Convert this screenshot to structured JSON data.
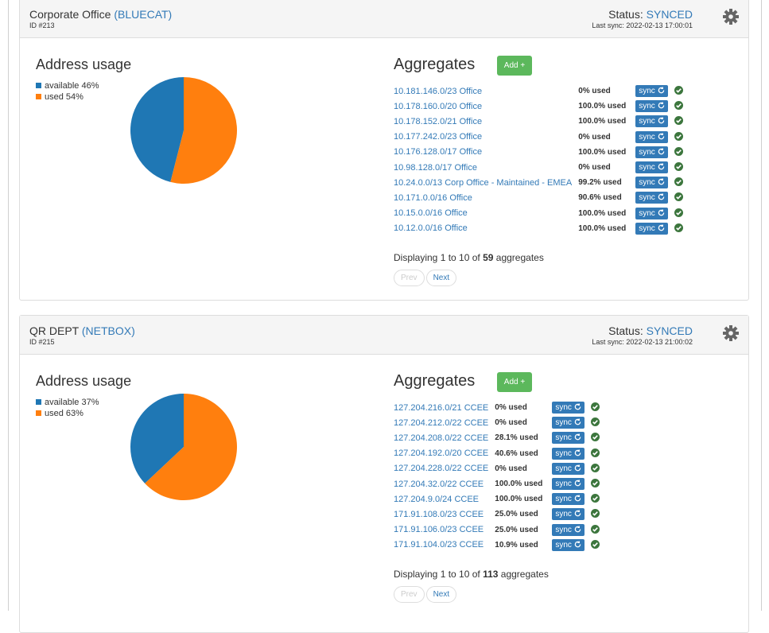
{
  "panels": [
    {
      "name": "Corporate Office",
      "source": "(BLUECAT)",
      "id": "ID #213",
      "status_label": "Status:",
      "status": "SYNCED",
      "last_sync": "Last sync: 2022-02-13 17:00:01",
      "chart_data": {
        "type": "pie",
        "title": "Address usage",
        "categories": [
          "available",
          "used"
        ],
        "values": [
          46,
          54
        ],
        "value_labels": [
          "46%",
          "54%"
        ],
        "colors": [
          "#1f77b4",
          "#ff7f0e"
        ]
      },
      "aggregates": {
        "title": "Aggregates",
        "add": "Add +",
        "sync": "sync",
        "rows": [
          {
            "name": "10.181.146.0/23 Office",
            "used": "0% used"
          },
          {
            "name": "10.178.160.0/20 Office",
            "used": "100.0% used"
          },
          {
            "name": "10.178.152.0/21 Office",
            "used": "100.0% used"
          },
          {
            "name": "10.177.242.0/23 Office",
            "used": "0% used"
          },
          {
            "name": "10.176.128.0/17 Office",
            "used": "100.0% used"
          },
          {
            "name": "10.98.128.0/17 Office",
            "used": "0% used"
          },
          {
            "name": "10.24.0.0/13 Corp Office - Maintained - EMEA",
            "used": "99.2% used"
          },
          {
            "name": "10.171.0.0/16 Office",
            "used": "90.6% used"
          },
          {
            "name": "10.15.0.0/16 Office",
            "used": "100.0% used"
          },
          {
            "name": "10.12.0.0/16 Office",
            "used": "100.0% used"
          }
        ],
        "pagination": {
          "prefix": "Displaying 1 to 10 of",
          "total": 59,
          "suffix": "aggregates",
          "prev": "Prev",
          "next": "Next"
        }
      }
    },
    {
      "name": "QR DEPT",
      "source": "(NETBOX)",
      "id": "ID #215",
      "status_label": "Status:",
      "status": "SYNCED",
      "last_sync": "Last sync: 2022-02-13 21:00:02",
      "chart_data": {
        "type": "pie",
        "title": "Address usage",
        "categories": [
          "available",
          "used"
        ],
        "values": [
          37,
          63
        ],
        "value_labels": [
          "37%",
          "63%"
        ],
        "colors": [
          "#1f77b4",
          "#ff7f0e"
        ]
      },
      "aggregates": {
        "title": "Aggregates",
        "add": "Add +",
        "sync": "sync",
        "rows": [
          {
            "name": "127.204.216.0/21 CCEE",
            "used": "0% used"
          },
          {
            "name": "127.204.212.0/22 CCEE",
            "used": "0% used"
          },
          {
            "name": "127.204.208.0/22 CCEE",
            "used": "28.1% used"
          },
          {
            "name": "127.204.192.0/20 CCEE",
            "used": "40.6% used"
          },
          {
            "name": "127.204.228.0/22 CCEE",
            "used": "0% used"
          },
          {
            "name": "127.204.32.0/22 CCEE",
            "used": "100.0% used"
          },
          {
            "name": "127.204.9.0/24 CCEE",
            "used": "100.0% used"
          },
          {
            "name": "171.91.108.0/23 CCEE",
            "used": "25.0% used"
          },
          {
            "name": "171.91.106.0/23 CCEE",
            "used": "25.0% used"
          },
          {
            "name": "171.91.104.0/23 CCEE",
            "used": "10.9% used"
          }
        ],
        "pagination": {
          "prefix": "Displaying 1 to 10 of",
          "total": 113,
          "suffix": "aggregates",
          "prev": "Prev",
          "next": "Next"
        }
      }
    }
  ]
}
